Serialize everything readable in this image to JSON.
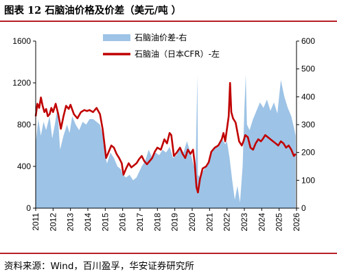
{
  "figure": {
    "title": "图表 12 石脑油价格及价差（美元/吨 ）",
    "source": "资料来源：Wind，百川盈孚，华安证券研究所"
  },
  "colors": {
    "rule": "#b81d24",
    "spread_fill": "#9dc3e6",
    "price_line": "#c00000"
  },
  "chart_data": {
    "type": "area",
    "x_unit": "year",
    "x_ticks": [
      "2011",
      "2012",
      "2013",
      "2014",
      "2015",
      "2016",
      "2017",
      "2018",
      "2019",
      "2020",
      "2021",
      "2022",
      "2023",
      "2024",
      "2025",
      "2026"
    ],
    "x_range": [
      2011,
      2026
    ],
    "y_left": {
      "range": [
        0,
        1600
      ],
      "ticks": [
        "0",
        "400",
        "800",
        "1200",
        "1600"
      ]
    },
    "y_right": {
      "range": [
        0,
        600
      ],
      "ticks": [
        "0",
        "100",
        "200",
        "300",
        "400",
        "500",
        "600"
      ]
    },
    "grid": false,
    "legend_position": "top-center",
    "series": [
      {
        "name": "石脑油价差-右",
        "type": "area",
        "axis": "right",
        "points": [
          [
            2011.0,
            230
          ],
          [
            2011.15,
            320
          ],
          [
            2011.3,
            260
          ],
          [
            2011.45,
            310
          ],
          [
            2011.6,
            280
          ],
          [
            2011.8,
            330
          ],
          [
            2011.95,
            250
          ],
          [
            2012.1,
            300
          ],
          [
            2012.25,
            360
          ],
          [
            2012.4,
            210
          ],
          [
            2012.6,
            260
          ],
          [
            2012.8,
            300
          ],
          [
            2012.95,
            270
          ],
          [
            2013.1,
            330
          ],
          [
            2013.3,
            300
          ],
          [
            2013.5,
            280
          ],
          [
            2013.7,
            310
          ],
          [
            2013.9,
            300
          ],
          [
            2014.1,
            320
          ],
          [
            2014.3,
            320
          ],
          [
            2014.5,
            310
          ],
          [
            2014.7,
            300
          ],
          [
            2014.9,
            250
          ],
          [
            2015.0,
            190
          ],
          [
            2015.1,
            160
          ],
          [
            2015.3,
            200
          ],
          [
            2015.5,
            180
          ],
          [
            2015.7,
            150
          ],
          [
            2015.9,
            140
          ],
          [
            2016.0,
            120
          ],
          [
            2016.2,
            110
          ],
          [
            2016.4,
            120
          ],
          [
            2016.6,
            100
          ],
          [
            2016.8,
            110
          ],
          [
            2016.95,
            130
          ],
          [
            2017.1,
            150
          ],
          [
            2017.3,
            170
          ],
          [
            2017.5,
            210
          ],
          [
            2017.7,
            180
          ],
          [
            2017.9,
            200
          ],
          [
            2018.1,
            190
          ],
          [
            2018.3,
            210
          ],
          [
            2018.5,
            200
          ],
          [
            2018.7,
            220
          ],
          [
            2018.9,
            180
          ],
          [
            2019.1,
            190
          ],
          [
            2019.3,
            220
          ],
          [
            2019.5,
            200
          ],
          [
            2019.7,
            240
          ],
          [
            2019.9,
            200
          ],
          [
            2020.1,
            150
          ],
          [
            2020.2,
            160
          ],
          [
            2020.3,
            480
          ],
          [
            2020.33,
            120
          ],
          [
            2020.45,
            110
          ],
          [
            2020.6,
            130
          ],
          [
            2020.8,
            150
          ],
          [
            2020.95,
            170
          ],
          [
            2021.1,
            200
          ],
          [
            2021.3,
            220
          ],
          [
            2021.5,
            220
          ],
          [
            2021.7,
            250
          ],
          [
            2021.9,
            230
          ],
          [
            2022.0,
            240
          ],
          [
            2022.15,
            180
          ],
          [
            2022.3,
            100
          ],
          [
            2022.45,
            30
          ],
          [
            2022.6,
            80
          ],
          [
            2022.75,
            20
          ],
          [
            2022.9,
            150
          ],
          [
            2023.0,
            350
          ],
          [
            2023.08,
            480
          ],
          [
            2023.15,
            300
          ],
          [
            2023.3,
            280
          ],
          [
            2023.5,
            320
          ],
          [
            2023.7,
            350
          ],
          [
            2023.9,
            380
          ],
          [
            2024.1,
            360
          ],
          [
            2024.3,
            390
          ],
          [
            2024.5,
            350
          ],
          [
            2024.7,
            380
          ],
          [
            2024.9,
            340
          ],
          [
            2025.1,
            460
          ],
          [
            2025.3,
            400
          ],
          [
            2025.5,
            360
          ],
          [
            2025.7,
            330
          ],
          [
            2025.85,
            290
          ],
          [
            2025.95,
            260
          ]
        ]
      },
      {
        "name": "石脑油（日本CFR）-左",
        "type": "line",
        "axis": "left",
        "points": [
          [
            2011.0,
            880
          ],
          [
            2011.1,
            1000
          ],
          [
            2011.2,
            960
          ],
          [
            2011.3,
            1060
          ],
          [
            2011.4,
            980
          ],
          [
            2011.5,
            920
          ],
          [
            2011.6,
            950
          ],
          [
            2011.7,
            880
          ],
          [
            2011.8,
            900
          ],
          [
            2011.9,
            960
          ],
          [
            2012.0,
            920
          ],
          [
            2012.15,
            1000
          ],
          [
            2012.3,
            900
          ],
          [
            2012.45,
            760
          ],
          [
            2012.6,
            880
          ],
          [
            2012.75,
            980
          ],
          [
            2012.9,
            950
          ],
          [
            2013.0,
            990
          ],
          [
            2013.2,
            900
          ],
          [
            2013.4,
            860
          ],
          [
            2013.6,
            920
          ],
          [
            2013.8,
            940
          ],
          [
            2013.95,
            930
          ],
          [
            2014.1,
            940
          ],
          [
            2014.3,
            920
          ],
          [
            2014.5,
            960
          ],
          [
            2014.7,
            900
          ],
          [
            2014.85,
            760
          ],
          [
            2014.95,
            620
          ],
          [
            2015.05,
            480
          ],
          [
            2015.2,
            540
          ],
          [
            2015.35,
            600
          ],
          [
            2015.5,
            580
          ],
          [
            2015.65,
            520
          ],
          [
            2015.8,
            480
          ],
          [
            2015.95,
            430
          ],
          [
            2016.05,
            320
          ],
          [
            2016.2,
            380
          ],
          [
            2016.35,
            430
          ],
          [
            2016.5,
            390
          ],
          [
            2016.65,
            410
          ],
          [
            2016.8,
            430
          ],
          [
            2016.95,
            470
          ],
          [
            2017.1,
            500
          ],
          [
            2017.25,
            450
          ],
          [
            2017.4,
            420
          ],
          [
            2017.55,
            450
          ],
          [
            2017.7,
            480
          ],
          [
            2017.85,
            540
          ],
          [
            2018.0,
            580
          ],
          [
            2018.2,
            560
          ],
          [
            2018.4,
            660
          ],
          [
            2018.55,
            620
          ],
          [
            2018.7,
            720
          ],
          [
            2018.8,
            700
          ],
          [
            2018.95,
            500
          ],
          [
            2019.1,
            530
          ],
          [
            2019.3,
            580
          ],
          [
            2019.45,
            520
          ],
          [
            2019.6,
            480
          ],
          [
            2019.75,
            560
          ],
          [
            2019.9,
            520
          ],
          [
            2020.05,
            560
          ],
          [
            2020.15,
            420
          ],
          [
            2020.25,
            200
          ],
          [
            2020.33,
            150
          ],
          [
            2020.45,
            280
          ],
          [
            2020.6,
            380
          ],
          [
            2020.8,
            400
          ],
          [
            2020.95,
            440
          ],
          [
            2021.1,
            540
          ],
          [
            2021.3,
            580
          ],
          [
            2021.5,
            600
          ],
          [
            2021.7,
            660
          ],
          [
            2021.8,
            720
          ],
          [
            2021.9,
            640
          ],
          [
            2022.0,
            760
          ],
          [
            2022.1,
            880
          ],
          [
            2022.18,
            1200
          ],
          [
            2022.25,
            920
          ],
          [
            2022.35,
            860
          ],
          [
            2022.5,
            820
          ],
          [
            2022.7,
            640
          ],
          [
            2022.85,
            600
          ],
          [
            2022.95,
            640
          ],
          [
            2023.05,
            700
          ],
          [
            2023.2,
            680
          ],
          [
            2023.35,
            580
          ],
          [
            2023.5,
            560
          ],
          [
            2023.65,
            620
          ],
          [
            2023.8,
            660
          ],
          [
            2023.95,
            640
          ],
          [
            2024.05,
            660
          ],
          [
            2024.2,
            700
          ],
          [
            2024.35,
            680
          ],
          [
            2024.5,
            660
          ],
          [
            2024.65,
            640
          ],
          [
            2024.8,
            620
          ],
          [
            2024.95,
            600
          ],
          [
            2025.1,
            640
          ],
          [
            2025.25,
            620
          ],
          [
            2025.4,
            580
          ],
          [
            2025.55,
            600
          ],
          [
            2025.7,
            560
          ],
          [
            2025.85,
            500
          ],
          [
            2025.95,
            520
          ]
        ]
      }
    ]
  }
}
